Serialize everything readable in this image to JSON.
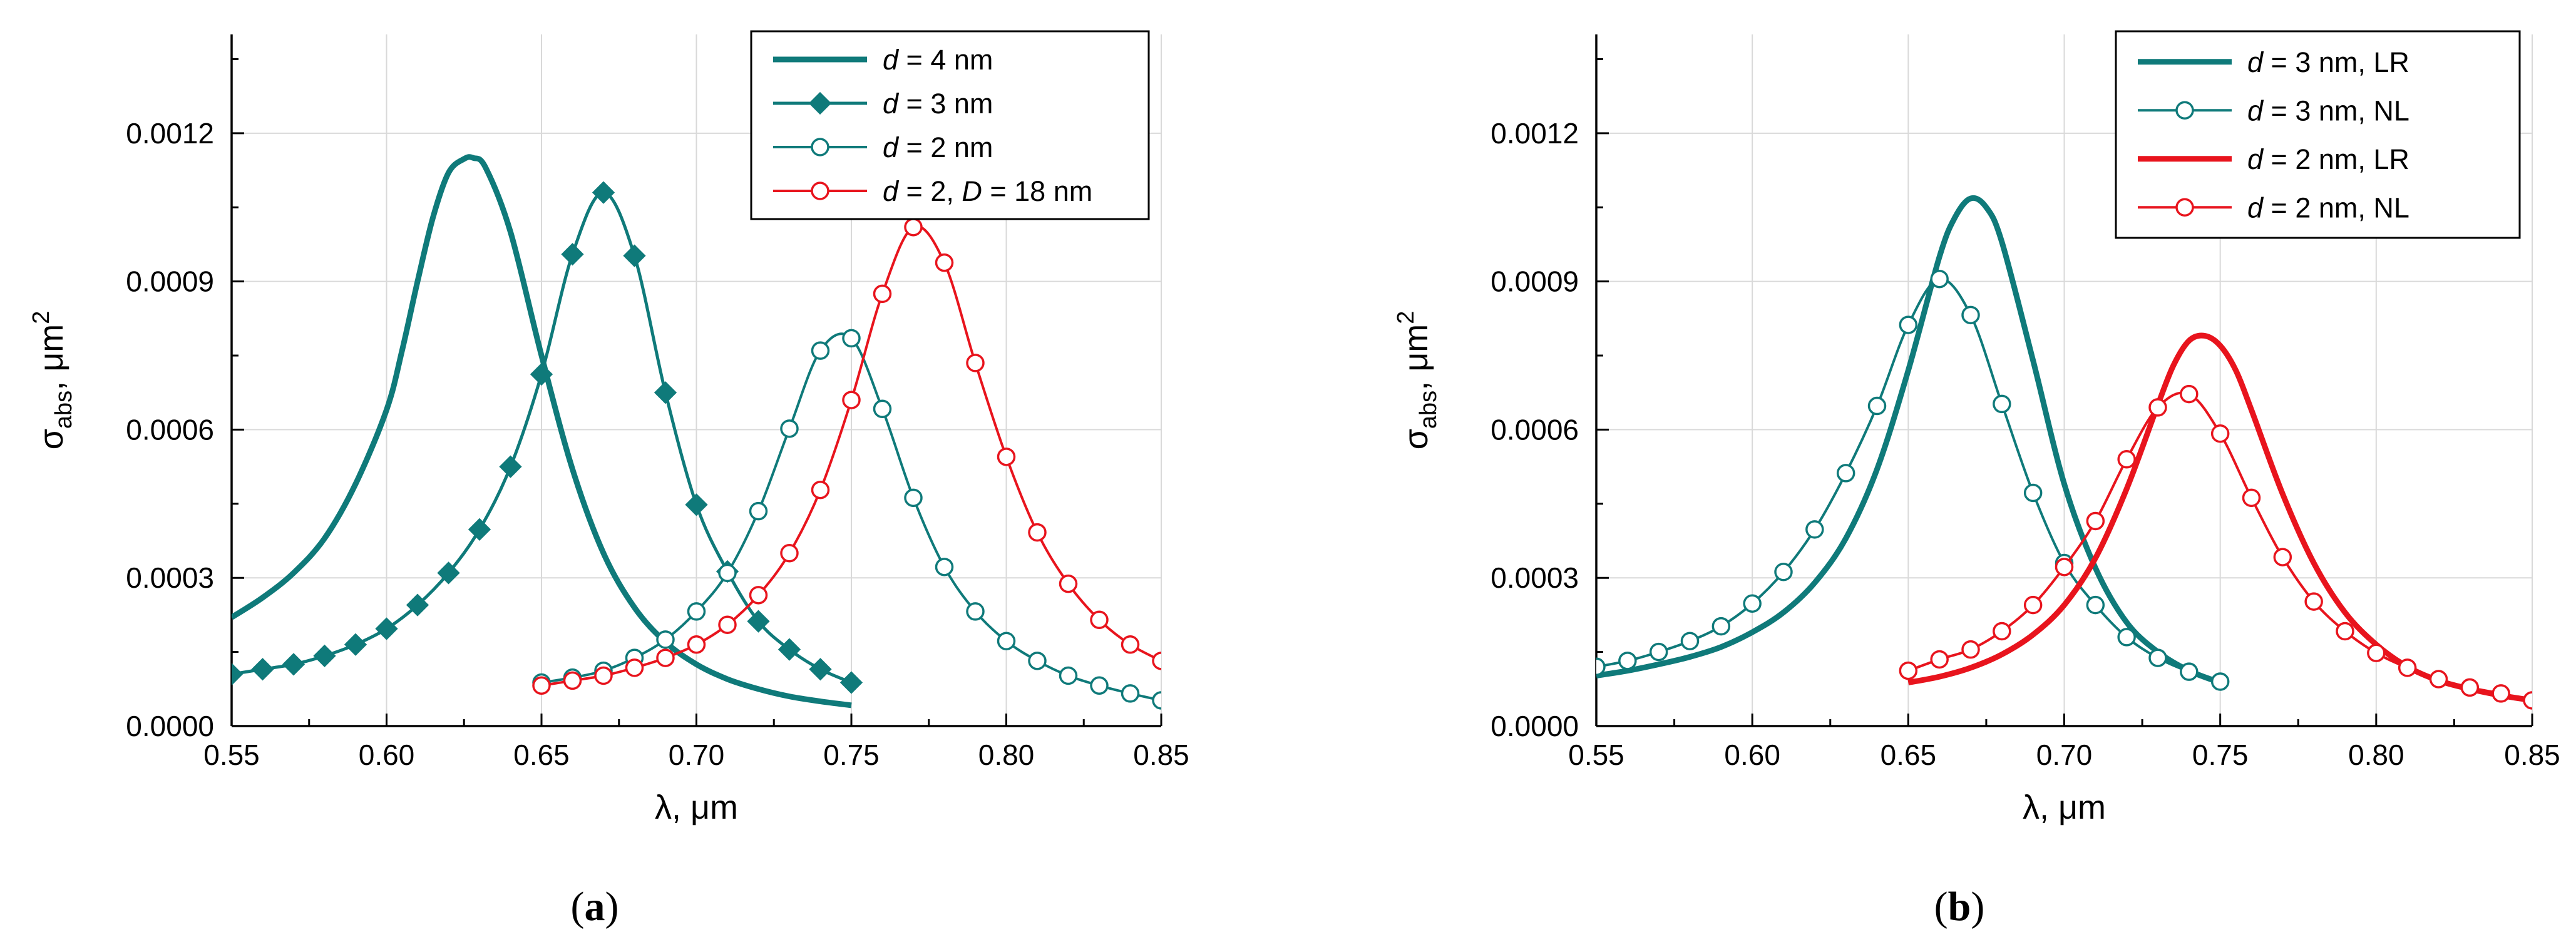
{
  "chart_data": [
    {
      "type": "line",
      "panel_label": "(a)",
      "xlabel": "λ, μm",
      "ylabel": "σabs, μm2",
      "xlim": [
        0.55,
        0.85
      ],
      "ylim": [
        0,
        0.0014
      ],
      "grid": true,
      "legend_position": "top-right",
      "x_ticks": [
        "0.55",
        "0.60",
        "0.65",
        "0.70",
        "0.75",
        "0.80",
        "0.85"
      ],
      "y_ticks": [
        "0.0000",
        "0.0003",
        "0.0006",
        "0.0009",
        "0.0012"
      ],
      "series": [
        {
          "name": "d = 4 nm",
          "legend": {
            "var": "d",
            "rest": " = 4 nm"
          },
          "color": "#0f7a7a",
          "width": 9,
          "marker": "none",
          "marker_fill": "",
          "x": [
            0.55,
            0.56,
            0.57,
            0.58,
            0.59,
            0.6,
            0.605,
            0.61,
            0.615,
            0.62,
            0.625,
            0.628,
            0.632,
            0.64,
            0.65,
            0.66,
            0.67,
            0.68,
            0.69,
            0.7,
            0.71,
            0.72,
            0.73,
            0.74,
            0.75
          ],
          "y": [
            0.00022,
            0.00026,
            0.00031,
            0.00038,
            0.00049,
            0.00064,
            0.00076,
            0.0009,
            0.00103,
            0.00112,
            0.001148,
            0.00115,
            0.00113,
            0.001,
            0.00075,
            0.00052,
            0.00035,
            0.00024,
            0.00017,
            0.000125,
            9.5e-05,
            7.5e-05,
            6e-05,
            5e-05,
            4.2e-05
          ]
        },
        {
          "name": "d = 3 nm",
          "legend": {
            "var": "d",
            "rest": " = 3 nm"
          },
          "color": "#0f7a7a",
          "width": 5,
          "marker": "diamond",
          "marker_fill": "#0f7a7a",
          "x": [
            0.55,
            0.56,
            0.57,
            0.58,
            0.59,
            0.6,
            0.61,
            0.62,
            0.63,
            0.64,
            0.65,
            0.66,
            0.67,
            0.68,
            0.69,
            0.7,
            0.71,
            0.72,
            0.73,
            0.74,
            0.75
          ],
          "y": [
            0.000105,
            0.000115,
            0.000125,
            0.000142,
            0.000165,
            0.000197,
            0.000245,
            0.00031,
            0.000398,
            0.000525,
            0.000712,
            0.000955,
            0.00108,
            0.000952,
            0.000675,
            0.000448,
            0.000313,
            0.000212,
            0.000155,
            0.000115,
            8.8e-05
          ]
        },
        {
          "name": "d = 2 nm",
          "legend": {
            "var": "d",
            "rest": " = 2 nm"
          },
          "color": "#0f7a7a",
          "width": 4,
          "marker": "circle",
          "marker_fill": "#ffffff",
          "x": [
            0.65,
            0.66,
            0.67,
            0.68,
            0.69,
            0.7,
            0.71,
            0.72,
            0.73,
            0.74,
            0.75,
            0.76,
            0.77,
            0.78,
            0.79,
            0.8,
            0.81,
            0.82,
            0.83,
            0.84,
            0.85
          ],
          "y": [
            8.8e-05,
            9.8e-05,
            0.000112,
            0.000138,
            0.000175,
            0.000232,
            0.00031,
            0.000435,
            0.000602,
            0.00076,
            0.000785,
            0.000642,
            0.000462,
            0.000322,
            0.000232,
            0.000172,
            0.000132,
            0.000102,
            8.2e-05,
            6.6e-05,
            5.2e-05
          ]
        },
        {
          "name": "d = 2, D = 18 nm",
          "legend": {
            "var": "d",
            "rest": " = 2, ",
            "var2": "D",
            "rest2": " = 18 nm"
          },
          "color": "#e8141d",
          "width": 4,
          "marker": "circle",
          "marker_fill": "#ffffff",
          "x": [
            0.65,
            0.66,
            0.67,
            0.68,
            0.69,
            0.7,
            0.71,
            0.72,
            0.73,
            0.74,
            0.75,
            0.76,
            0.77,
            0.78,
            0.79,
            0.8,
            0.81,
            0.82,
            0.83,
            0.84,
            0.85
          ],
          "y": [
            8.2e-05,
            9.2e-05,
            0.000102,
            0.000118,
            0.000138,
            0.000165,
            0.000205,
            0.000265,
            0.00035,
            0.000478,
            0.00066,
            0.000875,
            0.00101,
            0.000938,
            0.000735,
            0.000545,
            0.000392,
            0.000288,
            0.000215,
            0.000165,
            0.000132
          ]
        }
      ]
    },
    {
      "type": "line",
      "panel_label": "(b)",
      "xlabel": "λ, μm",
      "ylabel": "σabs, μm2",
      "xlim": [
        0.55,
        0.85
      ],
      "ylim": [
        0,
        0.0014
      ],
      "grid": true,
      "legend_position": "top-right",
      "x_ticks": [
        "0.55",
        "0.60",
        "0.65",
        "0.70",
        "0.75",
        "0.80",
        "0.85"
      ],
      "y_ticks": [
        "0.0000",
        "0.0003",
        "0.0006",
        "0.0009",
        "0.0012"
      ],
      "series": [
        {
          "name": "d = 3 nm, LR",
          "legend": {
            "var": "d",
            "rest": " = 3 nm, LR"
          },
          "color": "#0f7a7a",
          "width": 9,
          "marker": "none",
          "marker_fill": "",
          "x": [
            0.55,
            0.56,
            0.57,
            0.58,
            0.59,
            0.6,
            0.61,
            0.62,
            0.63,
            0.64,
            0.65,
            0.66,
            0.665,
            0.67,
            0.675,
            0.68,
            0.69,
            0.7,
            0.71,
            0.72,
            0.73,
            0.74,
            0.75
          ],
          "y": [
            0.000102,
            0.000112,
            0.000125,
            0.00014,
            0.00016,
            0.00019,
            0.00023,
            0.00029,
            0.00038,
            0.00052,
            0.00072,
            0.00095,
            0.00103,
            0.001068,
            0.00105,
            0.00098,
            0.00074,
            0.00049,
            0.00032,
            0.00021,
            0.00015,
            0.000112,
            8.8e-05
          ]
        },
        {
          "name": "d = 3 nm, NL",
          "legend": {
            "var": "d",
            "rest": " = 3 nm, NL"
          },
          "color": "#0f7a7a",
          "width": 4,
          "marker": "circle",
          "marker_fill": "#ffffff",
          "x": [
            0.55,
            0.56,
            0.57,
            0.58,
            0.59,
            0.6,
            0.61,
            0.62,
            0.63,
            0.64,
            0.65,
            0.66,
            0.67,
            0.68,
            0.69,
            0.7,
            0.71,
            0.72,
            0.73,
            0.74,
            0.75
          ],
          "y": [
            0.00012,
            0.000132,
            0.00015,
            0.000172,
            0.000202,
            0.000248,
            0.000312,
            0.000398,
            0.000512,
            0.000648,
            0.000812,
            0.000905,
            0.000832,
            0.000652,
            0.000472,
            0.00033,
            0.000245,
            0.00018,
            0.000138,
            0.00011,
            9e-05
          ]
        },
        {
          "name": "d = 2 nm, LR",
          "legend": {
            "var": "d",
            "rest": " = 2 nm, LR"
          },
          "color": "#e8141d",
          "width": 9,
          "marker": "none",
          "marker_fill": "",
          "x": [
            0.65,
            0.66,
            0.67,
            0.68,
            0.69,
            0.7,
            0.71,
            0.72,
            0.73,
            0.735,
            0.74,
            0.745,
            0.75,
            0.755,
            0.76,
            0.77,
            0.78,
            0.79,
            0.8,
            0.81,
            0.82,
            0.83,
            0.84,
            0.85
          ],
          "y": [
            8.8e-05,
            0.0001,
            0.000118,
            0.000145,
            0.000185,
            0.000245,
            0.00034,
            0.00048,
            0.00065,
            0.00073,
            0.00078,
            0.00079,
            0.00077,
            0.00072,
            0.00064,
            0.00047,
            0.00033,
            0.00023,
            0.000165,
            0.00012,
            9.2e-05,
            7.5e-05,
            6.2e-05,
            5.2e-05
          ]
        },
        {
          "name": "d = 2 nm, NL",
          "legend": {
            "var": "d",
            "rest": " = 2 nm, NL"
          },
          "color": "#e8141d",
          "width": 4,
          "marker": "circle",
          "marker_fill": "#ffffff",
          "x": [
            0.65,
            0.66,
            0.67,
            0.68,
            0.69,
            0.7,
            0.71,
            0.72,
            0.73,
            0.74,
            0.75,
            0.76,
            0.77,
            0.78,
            0.79,
            0.8,
            0.81,
            0.82,
            0.83,
            0.84,
            0.85
          ],
          "y": [
            0.000112,
            0.000135,
            0.000155,
            0.000192,
            0.000245,
            0.000322,
            0.000415,
            0.00054,
            0.000645,
            0.000672,
            0.000592,
            0.000462,
            0.000342,
            0.000252,
            0.000192,
            0.000148,
            0.000118,
            9.5e-05,
            7.8e-05,
            6.6e-05,
            5.2e-05
          ]
        }
      ]
    }
  ]
}
